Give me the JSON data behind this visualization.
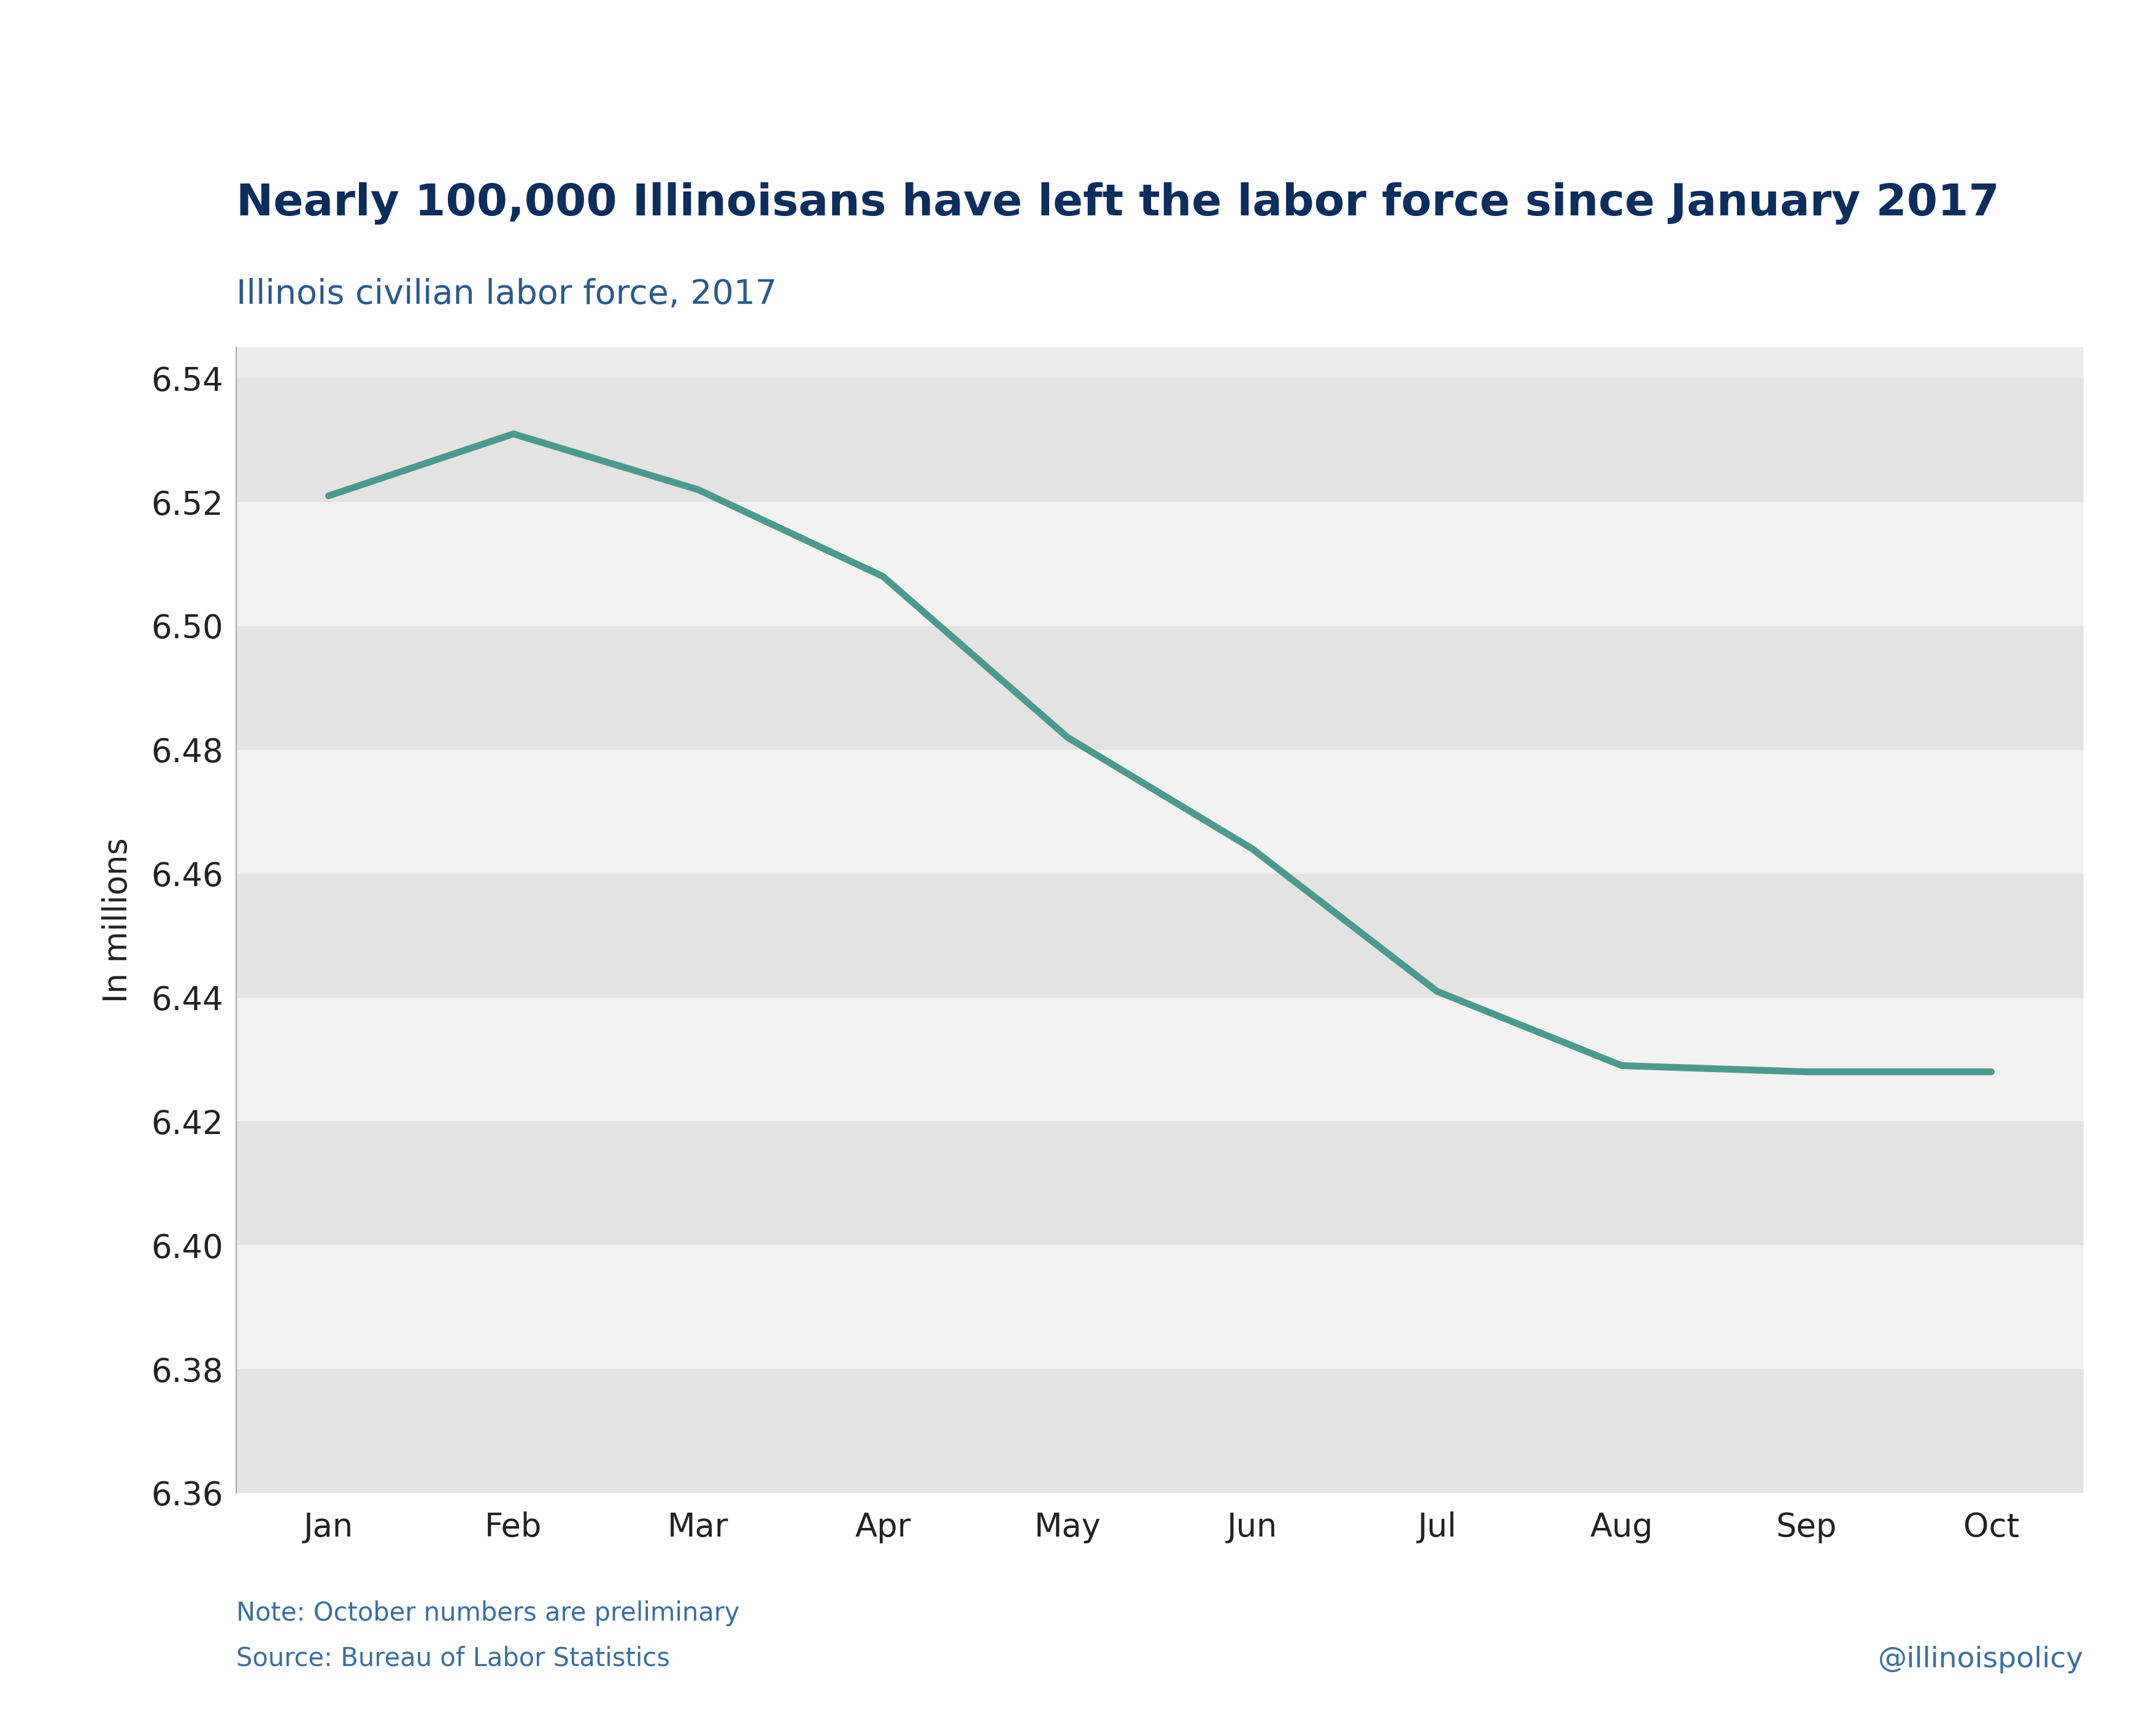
{
  "title": "Nearly 100,000 Illinoisans have left the labor force since January 2017",
  "subtitle": "Illinois civilian labor force, 2017",
  "ylabel": "In millions",
  "note_line1": "Note: October numbers are preliminary",
  "note_line2": "Source: Bureau of Labor Statistics",
  "watermark": "@illinoispolicy",
  "months": [
    "Jan",
    "Feb",
    "Mar",
    "Apr",
    "May",
    "Jun",
    "Jul",
    "Aug",
    "Sep",
    "Oct"
  ],
  "values": [
    6.521,
    6.531,
    6.522,
    6.508,
    6.482,
    6.464,
    6.441,
    6.429,
    6.428,
    6.428
  ],
  "line_color": "#4a9b8e",
  "line_width": 8,
  "title_color": "#0d2d5e",
  "subtitle_color": "#2a5a8a",
  "note_color": "#3a6fa0",
  "background_color": "#ffffff",
  "plot_bg_color": "#ebebeb",
  "band_color_light": "#f2f2f2",
  "band_color_dark": "#e3e3e3",
  "ylim_min": 6.36,
  "ylim_max": 6.545,
  "yticks": [
    6.36,
    6.38,
    6.4,
    6.42,
    6.44,
    6.46,
    6.48,
    6.5,
    6.52,
    6.54
  ],
  "title_fontsize": 52,
  "subtitle_fontsize": 40,
  "tick_fontsize": 38,
  "ylabel_fontsize": 38,
  "note_fontsize": 30,
  "watermark_fontsize": 34
}
